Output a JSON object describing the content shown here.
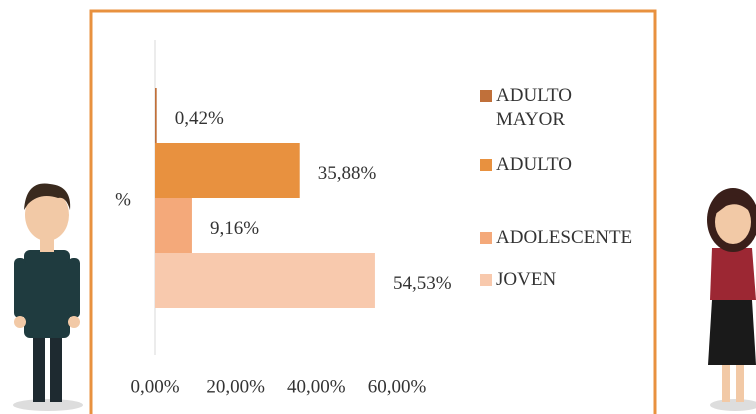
{
  "chart_data": {
    "type": "bar",
    "orientation": "horizontal",
    "ylabel": "%",
    "categories": [
      "ADULTO MAYOR",
      "ADULTO",
      "ADOLESCENTE",
      "JOVEN"
    ],
    "values": [
      0.42,
      35.88,
      9.16,
      54.53
    ],
    "value_labels": [
      "0,42%",
      "35,88%",
      "9,16%",
      "54,53%"
    ],
    "colors": [
      "#c0703a",
      "#e8913f",
      "#f4a97a",
      "#f8c9ad"
    ],
    "xlim": [
      0,
      60
    ],
    "xticks": [
      {
        "value": 0,
        "label": "0,00%"
      },
      {
        "value": 20,
        "label": "20,00%"
      },
      {
        "value": 40,
        "label": "40,00%"
      },
      {
        "value": 60,
        "label": "60,00%"
      }
    ],
    "legend": "right"
  }
}
